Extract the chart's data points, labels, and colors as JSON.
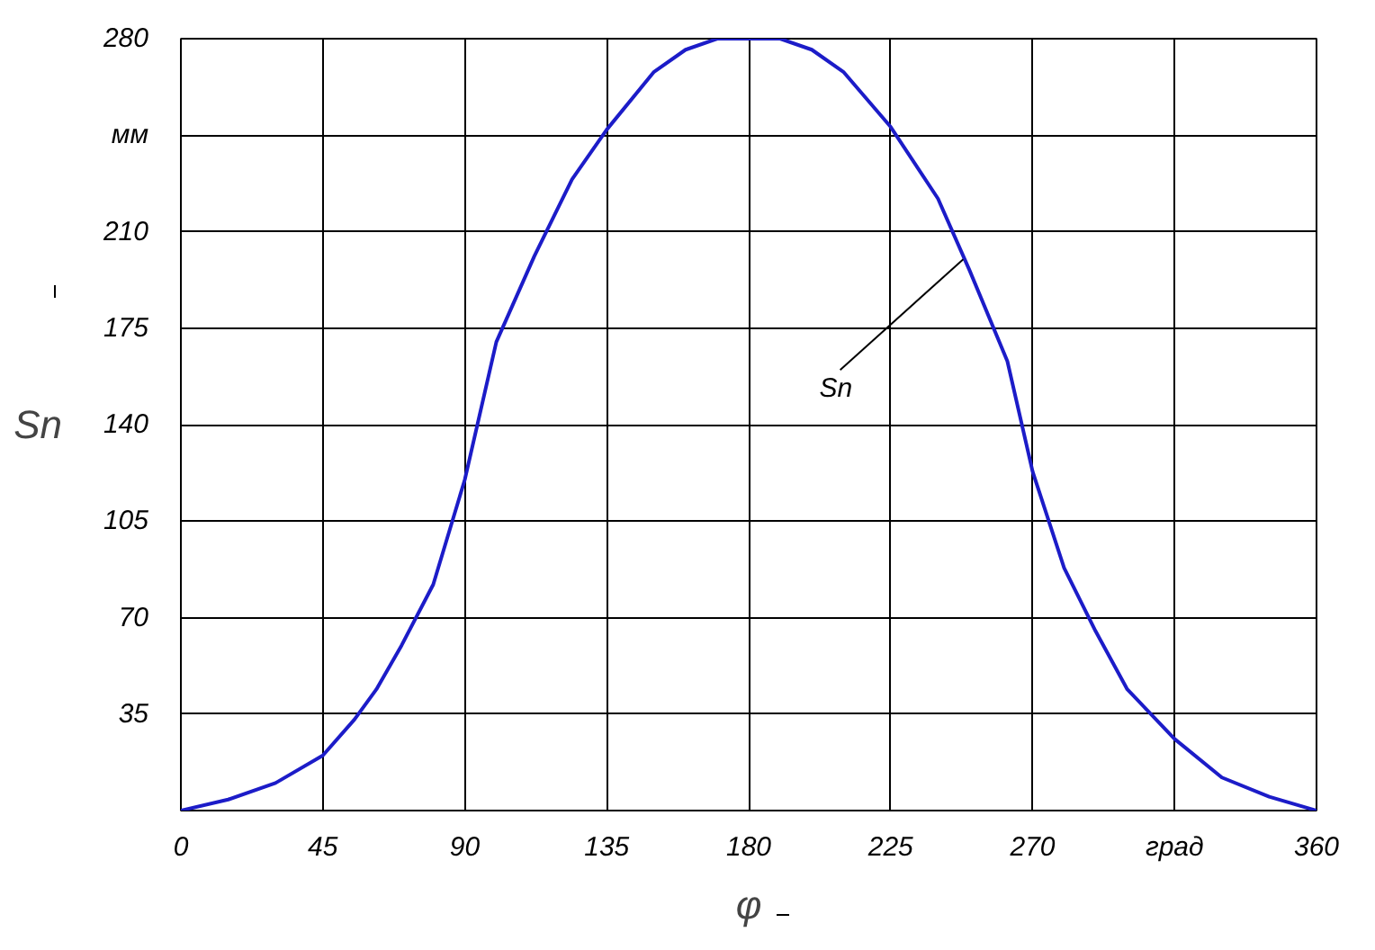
{
  "chart_data": {
    "type": "line",
    "xlabel": "φ",
    "ylabel": "Sn",
    "x": [
      0,
      15,
      30,
      45,
      55,
      62,
      70,
      80,
      90,
      100,
      112,
      124,
      135,
      150,
      160,
      170,
      180,
      190,
      200,
      210,
      225,
      240,
      250,
      262,
      270,
      280,
      290,
      300,
      315,
      330,
      345,
      360
    ],
    "series": [
      {
        "color": "#1c1cc8",
        "values": [
          0,
          4,
          10,
          20,
          33,
          44,
          60,
          82,
          120,
          170,
          201,
          229,
          247,
          268,
          276,
          280,
          280,
          280,
          276,
          268,
          248,
          222,
          196,
          163,
          123,
          88,
          65,
          44,
          26,
          12,
          5,
          0
        ]
      }
    ],
    "xlim": [
      0,
      360
    ],
    "ylim": [
      0,
      280
    ],
    "xticks": [
      0,
      45,
      90,
      135,
      180,
      225,
      270,
      {
        "value": 315,
        "label": "град"
      },
      360
    ],
    "yticks": [
      {
        "value": 0,
        "label": null
      },
      35,
      70,
      105,
      140,
      175,
      210,
      {
        "value": 245,
        "label": "мм"
      },
      280
    ],
    "grid": true,
    "marker": "none",
    "line_style": "solid",
    "annotations": [
      {
        "text": "Sn",
        "x": 248,
        "y": 200
      }
    ]
  }
}
